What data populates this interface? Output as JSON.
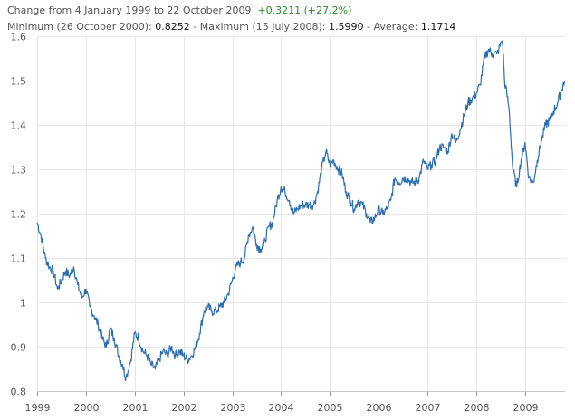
{
  "header": {
    "change_prefix": "Change from 4 January 1999 to 22 October 2009",
    "change_value": "+0.3211 (+27.2%)",
    "min_label": "Minimum (26 October 2000):",
    "min_value": "0.8252",
    "sep1": " - ",
    "max_label": "Maximum (15 July 2008):",
    "max_value": "1.5990",
    "sep2": " - ",
    "avg_label": "Average:",
    "avg_value": "1.1714"
  },
  "colors": {
    "line": "#2a6db0",
    "grid": "#e6e6e6",
    "positive": "#2a8a2a"
  },
  "chart_data": {
    "type": "line",
    "title": "",
    "xlabel": "",
    "ylabel": "",
    "ylim": [
      0.8,
      1.6
    ],
    "xlim": [
      1999.0,
      2009.82
    ],
    "grid": true,
    "y_ticks": [
      0.8,
      0.9,
      1,
      1.1,
      1.2,
      1.3,
      1.4,
      1.5,
      1.6
    ],
    "y_tick_labels": [
      "0.8",
      "0.9",
      "1",
      "1.1",
      "1.2",
      "1.3",
      "1.4",
      "1.5",
      "1.6"
    ],
    "x_ticks": [
      1999,
      2000,
      2001,
      2002,
      2003,
      2004,
      2005,
      2006,
      2007,
      2008,
      2009
    ],
    "x_tick_labels": [
      "1999",
      "2000",
      "2001",
      "2002",
      "2003",
      "2004",
      "2005",
      "2006",
      "2007",
      "2008",
      "2009"
    ],
    "series": [
      {
        "x": [
          1999.0,
          1999.08,
          1999.17,
          1999.25,
          1999.33,
          1999.42,
          1999.5,
          1999.58,
          1999.67,
          1999.75,
          1999.83,
          1999.92,
          2000.0,
          2000.08,
          2000.17,
          2000.25,
          2000.33,
          2000.42,
          2000.5,
          2000.58,
          2000.67,
          2000.75,
          2000.82,
          2000.92,
          2001.0,
          2001.08,
          2001.17,
          2001.25,
          2001.33,
          2001.42,
          2001.5,
          2001.58,
          2001.67,
          2001.75,
          2001.83,
          2001.92,
          2002.0,
          2002.08,
          2002.17,
          2002.25,
          2002.33,
          2002.42,
          2002.5,
          2002.58,
          2002.67,
          2002.75,
          2002.83,
          2002.92,
          2003.0,
          2003.08,
          2003.17,
          2003.25,
          2003.33,
          2003.42,
          2003.5,
          2003.58,
          2003.67,
          2003.75,
          2003.83,
          2003.92,
          2004.0,
          2004.08,
          2004.17,
          2004.25,
          2004.33,
          2004.42,
          2004.5,
          2004.58,
          2004.67,
          2004.75,
          2004.83,
          2004.92,
          2005.0,
          2005.08,
          2005.17,
          2005.25,
          2005.33,
          2005.42,
          2005.5,
          2005.58,
          2005.67,
          2005.75,
          2005.83,
          2005.92,
          2006.0,
          2006.08,
          2006.17,
          2006.25,
          2006.33,
          2006.42,
          2006.5,
          2006.58,
          2006.67,
          2006.75,
          2006.83,
          2006.92,
          2007.0,
          2007.08,
          2007.17,
          2007.25,
          2007.33,
          2007.42,
          2007.5,
          2007.58,
          2007.67,
          2007.75,
          2007.83,
          2007.92,
          2008.0,
          2008.08,
          2008.17,
          2008.25,
          2008.33,
          2008.42,
          2008.54,
          2008.58,
          2008.67,
          2008.75,
          2008.83,
          2008.92,
          2009.0,
          2009.08,
          2009.17,
          2009.25,
          2009.33,
          2009.42,
          2009.5,
          2009.58,
          2009.67,
          2009.75,
          2009.81
        ],
        "y": [
          1.18,
          1.15,
          1.1,
          1.08,
          1.07,
          1.03,
          1.05,
          1.07,
          1.06,
          1.08,
          1.04,
          1.01,
          1.03,
          0.99,
          0.97,
          0.95,
          0.92,
          0.9,
          0.94,
          0.92,
          0.88,
          0.86,
          0.83,
          0.87,
          0.93,
          0.92,
          0.89,
          0.88,
          0.86,
          0.85,
          0.87,
          0.89,
          0.88,
          0.9,
          0.88,
          0.89,
          0.88,
          0.87,
          0.88,
          0.9,
          0.93,
          0.98,
          0.99,
          0.98,
          0.98,
          0.99,
          1.0,
          1.02,
          1.05,
          1.08,
          1.09,
          1.1,
          1.15,
          1.17,
          1.13,
          1.12,
          1.14,
          1.17,
          1.18,
          1.23,
          1.26,
          1.25,
          1.23,
          1.2,
          1.21,
          1.22,
          1.22,
          1.22,
          1.22,
          1.25,
          1.3,
          1.34,
          1.31,
          1.32,
          1.3,
          1.29,
          1.25,
          1.23,
          1.21,
          1.23,
          1.22,
          1.2,
          1.18,
          1.19,
          1.21,
          1.2,
          1.21,
          1.23,
          1.28,
          1.27,
          1.28,
          1.28,
          1.27,
          1.27,
          1.28,
          1.32,
          1.3,
          1.31,
          1.32,
          1.35,
          1.35,
          1.34,
          1.38,
          1.36,
          1.39,
          1.42,
          1.45,
          1.46,
          1.47,
          1.49,
          1.55,
          1.57,
          1.56,
          1.56,
          1.59,
          1.5,
          1.44,
          1.3,
          1.26,
          1.32,
          1.36,
          1.28,
          1.27,
          1.32,
          1.36,
          1.4,
          1.41,
          1.43,
          1.45,
          1.48,
          1.5
        ]
      }
    ]
  }
}
